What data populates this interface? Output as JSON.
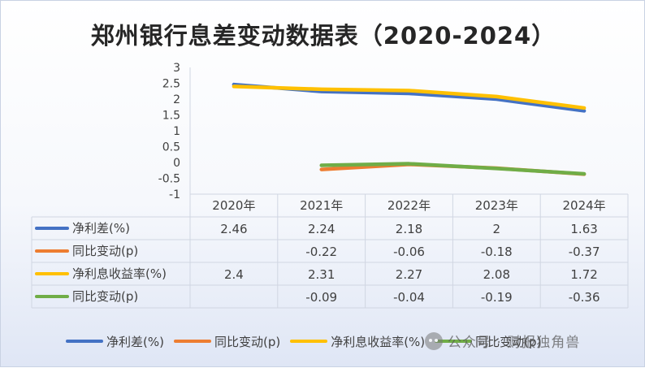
{
  "title": "郑州银行息差变动数据表（2020-2024）",
  "chart_data": {
    "type": "line",
    "categories": [
      "2020年",
      "2021年",
      "2022年",
      "2023年",
      "2024年"
    ],
    "ylim": [
      -1,
      3
    ],
    "yticks": [
      "3",
      "2.5",
      "2",
      "1.5",
      "1",
      "0.5",
      "0",
      "-0.5",
      "-1"
    ],
    "series": [
      {
        "name": "净利差(%)",
        "color": "#4472c4",
        "values": [
          2.46,
          2.24,
          2.18,
          2,
          1.63
        ],
        "labels": [
          "2.46",
          "2.24",
          "2.18",
          "2",
          "1.63"
        ]
      },
      {
        "name": "同比变动(p)",
        "color": "#ed7d31",
        "values": [
          null,
          -0.22,
          -0.06,
          -0.18,
          -0.37
        ],
        "labels": [
          "",
          "-0.22",
          "-0.06",
          "-0.18",
          "-0.37"
        ]
      },
      {
        "name": "净利息收益率(%)",
        "color": "#ffc000",
        "values": [
          2.4,
          2.31,
          2.27,
          2.08,
          1.72
        ],
        "labels": [
          "2.4",
          "2.31",
          "2.27",
          "2.08",
          "1.72"
        ]
      },
      {
        "name": "同比变动(p)",
        "color": "#70ad47",
        "values": [
          null,
          -0.09,
          -0.04,
          -0.19,
          -0.36
        ],
        "labels": [
          "",
          "-0.09",
          "-0.04",
          "-0.19",
          "-0.36"
        ]
      }
    ],
    "legend_position": "bottom",
    "grid": true
  },
  "watermark": "公众号 · 财报独角兽"
}
